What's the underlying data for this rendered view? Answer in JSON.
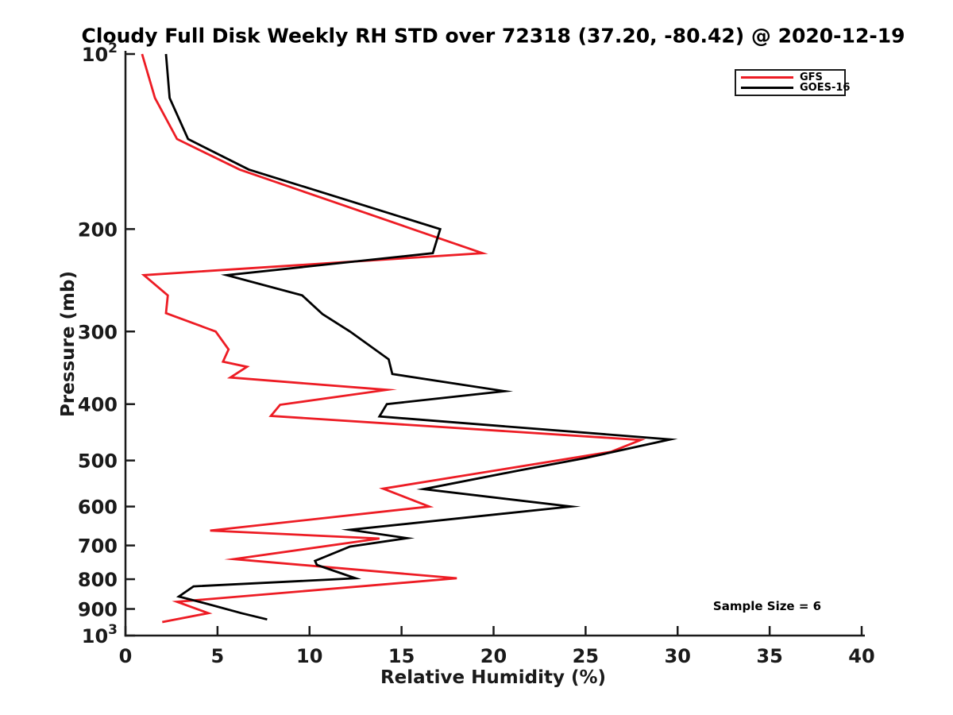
{
  "chart_data": {
    "type": "line",
    "title": "Cloudy Full Disk Weekly RH STD over 72318 (37.20, -80.42) @ 2020-12-19",
    "xlabel": "Relative Humidity (%)",
    "ylabel": "Pressure (mb)",
    "annotation": "Sample Size = 6",
    "legend_position": "upper right",
    "grid": false,
    "x_axis": {
      "min": 0,
      "max": 40,
      "ticks": [
        0,
        5,
        10,
        15,
        20,
        25,
        30,
        35,
        40
      ]
    },
    "y_axis": {
      "scale": "log",
      "min": 100,
      "max": 1000,
      "inverted": true,
      "ticks": [
        {
          "value": 100,
          "text": "10",
          "exp": "2"
        },
        {
          "value": 200,
          "text": "200"
        },
        {
          "value": 300,
          "text": "300"
        },
        {
          "value": 400,
          "text": "400"
        },
        {
          "value": 500,
          "text": "500"
        },
        {
          "value": 600,
          "text": "600"
        },
        {
          "value": 700,
          "text": "700"
        },
        {
          "value": 800,
          "text": "800"
        },
        {
          "value": 900,
          "text": "900"
        },
        {
          "value": 1000,
          "text": "10",
          "exp": "3"
        }
      ]
    },
    "series": [
      {
        "name": "GFS",
        "color": "#ed1c24",
        "points_format": "[relative_humidity_pct, pressure_mb]",
        "points": [
          [
            0.9,
            100
          ],
          [
            1.6,
            119
          ],
          [
            2.8,
            140
          ],
          [
            6.2,
            158
          ],
          [
            15.6,
            200
          ],
          [
            19.4,
            220
          ],
          [
            1.0,
            240
          ],
          [
            2.3,
            260
          ],
          [
            2.2,
            279
          ],
          [
            4.9,
            300
          ],
          [
            5.6,
            322
          ],
          [
            5.3,
            338
          ],
          [
            6.6,
            345
          ],
          [
            5.7,
            360
          ],
          [
            14.2,
            378
          ],
          [
            8.4,
            401
          ],
          [
            7.9,
            419
          ],
          [
            28.0,
            461
          ],
          [
            26.4,
            483
          ],
          [
            14.0,
            559
          ],
          [
            16.5,
            600
          ],
          [
            4.6,
            660
          ],
          [
            13.8,
            681
          ],
          [
            5.9,
            739
          ],
          [
            18.0,
            797
          ],
          [
            2.8,
            875
          ],
          [
            4.5,
            915
          ],
          [
            2.0,
            948
          ]
        ]
      },
      {
        "name": "GOES-16",
        "color": "#000000",
        "points_format": "[relative_humidity_pct, pressure_mb]",
        "points": [
          [
            2.2,
            100
          ],
          [
            2.4,
            119
          ],
          [
            3.4,
            140
          ],
          [
            6.7,
            158
          ],
          [
            17.1,
            200
          ],
          [
            16.7,
            220
          ],
          [
            5.5,
            240
          ],
          [
            9.6,
            260
          ],
          [
            10.7,
            280
          ],
          [
            12.2,
            300
          ],
          [
            14.3,
            335
          ],
          [
            14.5,
            355
          ],
          [
            20.6,
            380
          ],
          [
            14.2,
            400
          ],
          [
            13.8,
            420
          ],
          [
            29.6,
            460
          ],
          [
            25.0,
            495
          ],
          [
            21.4,
            520
          ],
          [
            16.2,
            560
          ],
          [
            24.2,
            600
          ],
          [
            12.2,
            658
          ],
          [
            15.3,
            680
          ],
          [
            12.2,
            703
          ],
          [
            10.3,
            744
          ],
          [
            10.4,
            756
          ],
          [
            12.5,
            797
          ],
          [
            3.7,
            823
          ],
          [
            2.9,
            857
          ],
          [
            4.2,
            878
          ],
          [
            6.3,
            915
          ],
          [
            7.7,
            938
          ]
        ]
      }
    ]
  }
}
